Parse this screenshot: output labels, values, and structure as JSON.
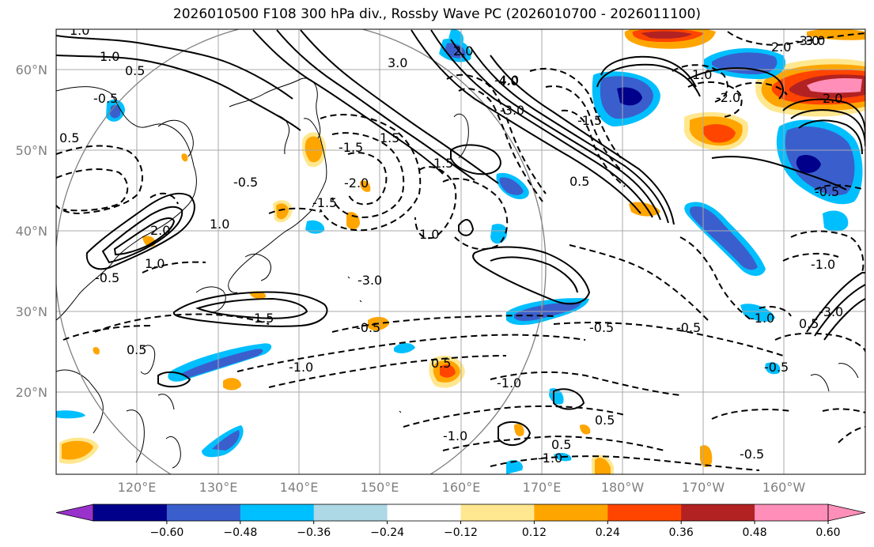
{
  "title": "2026010500 F108 300 hPa div., Rossby Wave PC (2026010700 - 2026011100)",
  "lat_labels": [
    "60°N",
    "50°N",
    "40°N",
    "30°N",
    "20°N"
  ],
  "lon_labels": [
    "120°E",
    "130°E",
    "140°E",
    "150°E",
    "160°E",
    "170°E",
    "180°W",
    "170°W",
    "160°W"
  ],
  "contour_labels": [
    "1.0",
    "1.0",
    "0.5",
    "-0.5",
    "0.5",
    "3.0",
    "2.0",
    "-3.0",
    "1.5",
    "-1.5",
    "-2.0",
    "1.5",
    "-0.5",
    "-1.5",
    "1.0",
    "-0.5",
    "1.0",
    "2.0",
    "-3.0",
    "1.0",
    "-0.5",
    "1.5",
    "-1.0",
    "0.5",
    "-0.5",
    "-0.5",
    "0.5",
    "-1.0",
    "-1.0",
    "0.5",
    "-1.0",
    "0.5",
    "-1.0",
    "-0.5",
    "-0.5",
    "2.0",
    "-3.0",
    "-4.0",
    "-2.0",
    "-1.5",
    "3.0",
    "-0.5",
    "1.0",
    "-1.0",
    "0.5",
    "-3.0",
    "2.0",
    "0.5",
    "4.0"
  ],
  "colorbar": {
    "ticks": [
      "−0.60",
      "−0.48",
      "−0.36",
      "−0.24",
      "−0.12",
      "0.12",
      "0.24",
      "0.36",
      "0.48",
      "0.60"
    ],
    "colors": [
      "#9932cc",
      "#00008b",
      "#3a5fcd",
      "#00bfff",
      "#add8e6",
      "#ffffff",
      "#ffe78f",
      "#ffa500",
      "#ff4500",
      "#b22222",
      "#ff8fb8",
      "#ff8fb8"
    ]
  },
  "colors": {
    "grid": "#a9a9a9",
    "coast": "#000000",
    "range_circle": "#808080"
  }
}
